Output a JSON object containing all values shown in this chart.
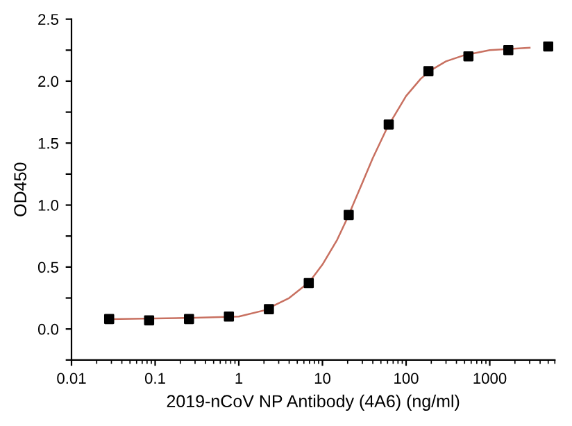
{
  "chart_data": {
    "type": "scatter",
    "xlabel": "2019-nCoV NP Antibody (4A6) (ng/ml)",
    "ylabel": "OD450",
    "log": "x",
    "marker": "square",
    "grid": false,
    "legend": false,
    "xlim": [
      0.01,
      6000
    ],
    "xticks": [
      0.01,
      0.1,
      1,
      10,
      100,
      1000
    ],
    "ylim": [
      -0.25,
      2.5
    ],
    "yticks": [
      {
        "value": -0.25,
        "label": null
      },
      {
        "value": 0,
        "label": "0.0"
      },
      {
        "value": 0.25,
        "label": null
      },
      0.5,
      {
        "value": 0.75,
        "label": null
      },
      {
        "value": 1,
        "label": "1.0"
      },
      {
        "value": 1.25,
        "label": null
      },
      1.5,
      {
        "value": 1.75,
        "label": null
      },
      {
        "value": 2,
        "label": "2.0"
      },
      {
        "value": 2.25,
        "label": null
      },
      2.5
    ],
    "series": [
      {
        "type": "line",
        "color": "#c87060",
        "marker": "none",
        "x": [
          0.0282,
          0.3,
          1,
          2,
          4,
          7,
          10,
          15,
          20,
          30,
          40,
          60,
          100,
          150,
          200,
          300,
          500,
          1000,
          3000
        ],
        "values": [
          0.08,
          0.09,
          0.1,
          0.15,
          0.25,
          0.38,
          0.52,
          0.72,
          0.9,
          1.18,
          1.38,
          1.63,
          1.88,
          2.02,
          2.09,
          2.16,
          2.21,
          2.25,
          2.27
        ]
      },
      {
        "color": "#000000",
        "x": [
          0.0282,
          0.0847,
          0.254,
          0.762,
          2.29,
          6.86,
          20.6,
          62,
          185,
          556,
          1667,
          5000
        ],
        "values": [
          0.08,
          0.07,
          0.08,
          0.1,
          0.16,
          0.37,
          0.92,
          1.65,
          2.08,
          2.2,
          2.25,
          2.28
        ]
      }
    ]
  }
}
